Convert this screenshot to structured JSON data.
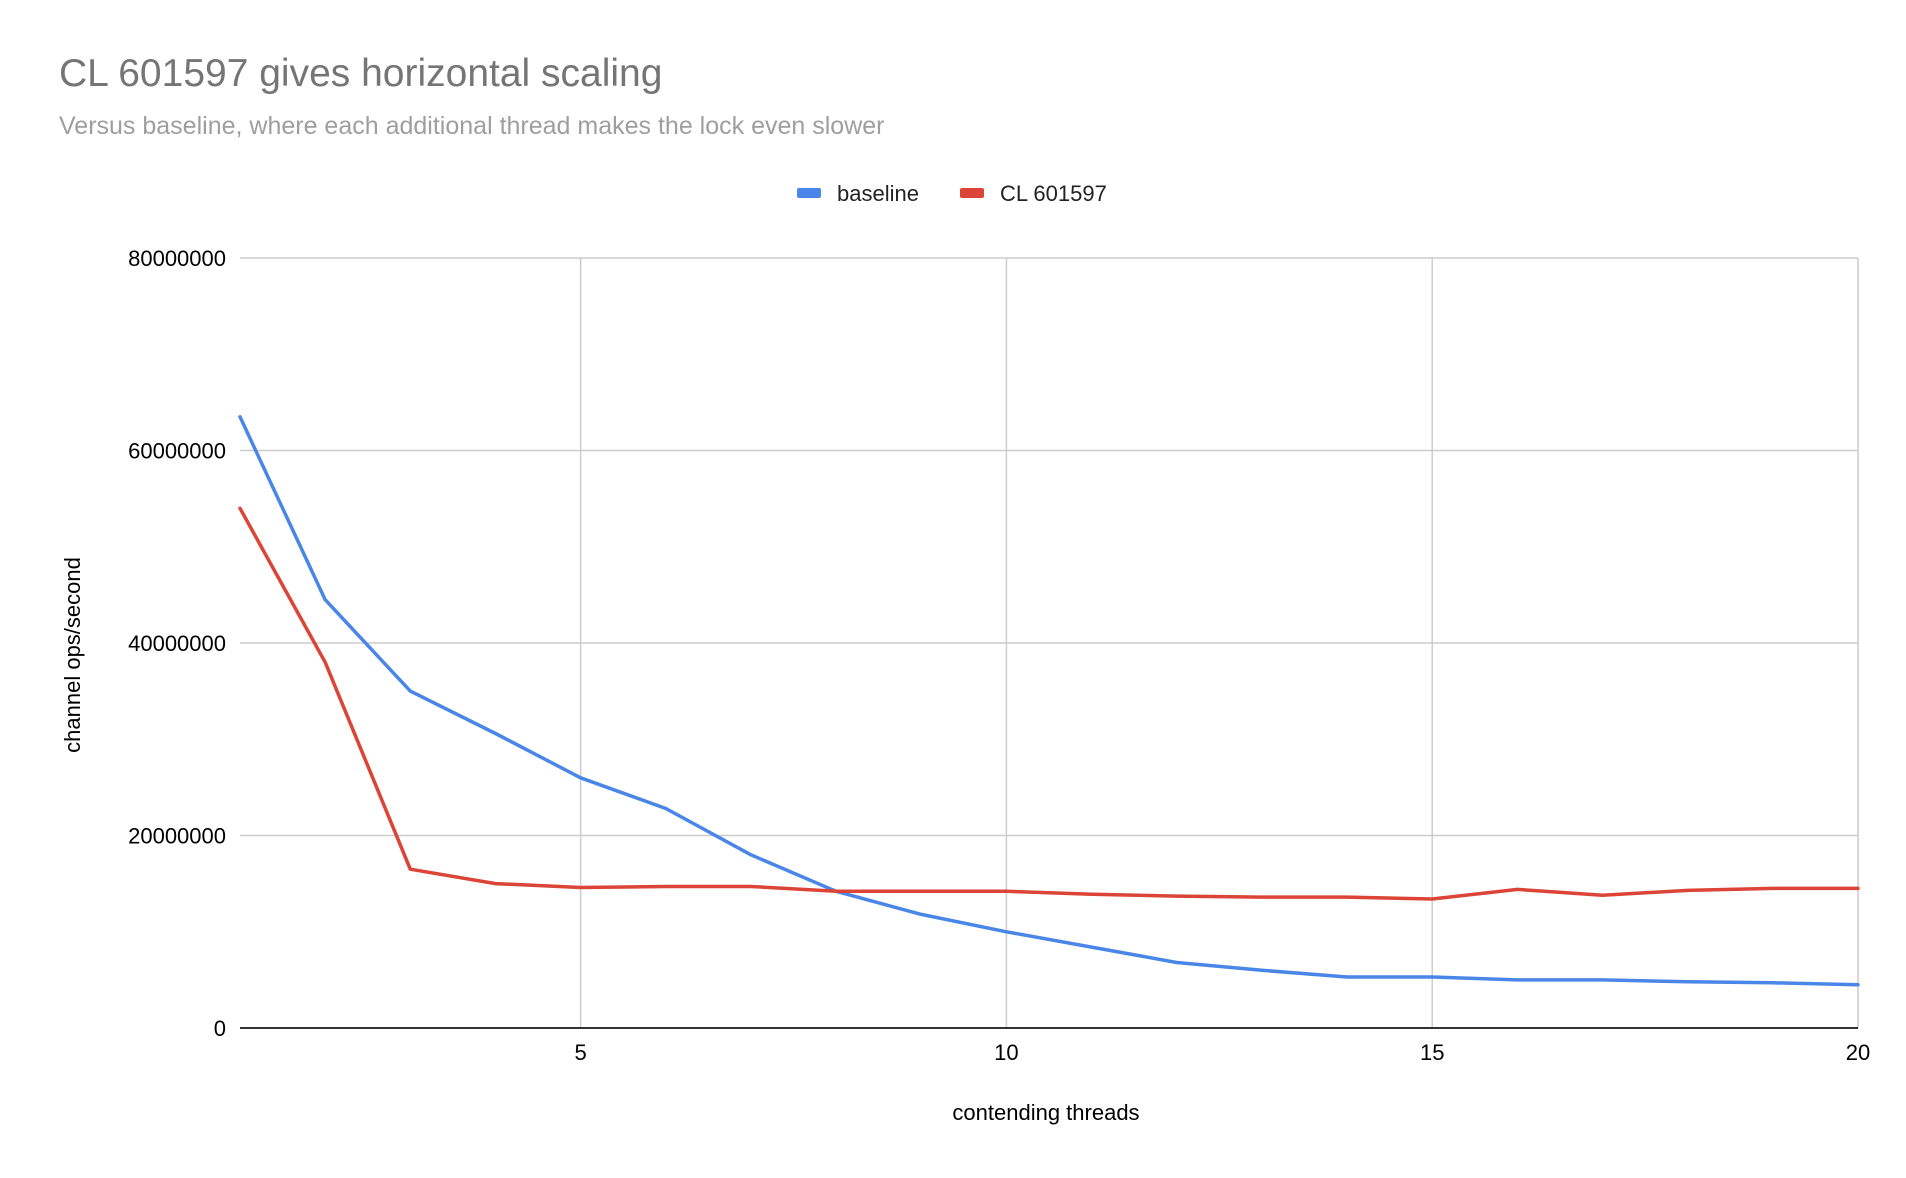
{
  "chart_data": {
    "type": "line",
    "title": "CL 601597 gives horizontal scaling",
    "subtitle": "Versus baseline, where each additional thread makes the lock even slower",
    "xlabel": "contending threads",
    "ylabel": "channel ops/second",
    "xlim": [
      1,
      20
    ],
    "ylim": [
      0,
      80000000
    ],
    "xticks": [
      5,
      10,
      15,
      20
    ],
    "yticks": [
      0,
      20000000,
      40000000,
      60000000,
      80000000
    ],
    "grid": true,
    "legend": "top-center",
    "x": [
      1,
      2,
      3,
      4,
      5,
      6,
      7,
      8,
      9,
      10,
      11,
      12,
      13,
      14,
      15,
      16,
      17,
      18,
      19,
      20
    ],
    "series": [
      {
        "name": "baseline",
        "color": "#4a86e8",
        "values": [
          63500000,
          44500000,
          35000000,
          30600000,
          26000000,
          22800000,
          18000000,
          14200000,
          11800000,
          10000000,
          8400000,
          6800000,
          6000000,
          5300000,
          5300000,
          5000000,
          5000000,
          4800000,
          4700000,
          4500000
        ]
      },
      {
        "name": "CL 601597",
        "color": "#db4437",
        "values": [
          54000000,
          38000000,
          16500000,
          15000000,
          14600000,
          14700000,
          14700000,
          14200000,
          14200000,
          14200000,
          13900000,
          13700000,
          13600000,
          13600000,
          13400000,
          14400000,
          13800000,
          14300000,
          14500000,
          14500000
        ]
      }
    ]
  }
}
